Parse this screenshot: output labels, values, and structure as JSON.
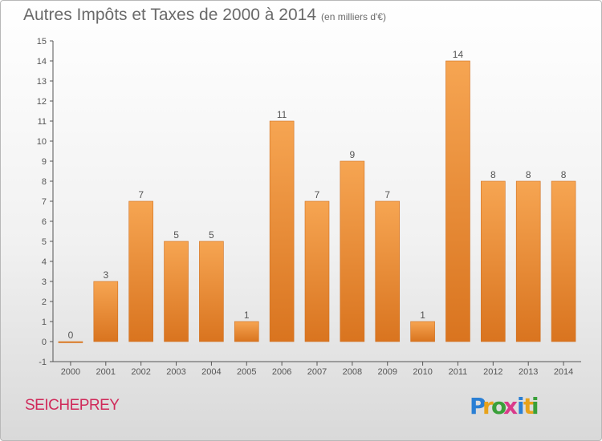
{
  "header": {
    "title": "Autres Impôts et Taxes de 2000 à 2014",
    "unit_note": "(en milliers d'€)"
  },
  "commune_name": "SEICHEPREY",
  "logo": {
    "text": "Proxiti",
    "colors": [
      "#2a7fd4",
      "#e8a21a",
      "#3aa03a",
      "#d93a8a"
    ]
  },
  "chart_data": {
    "type": "bar",
    "title": "Autres Impôts et Taxes de 2000 à 2014",
    "subtitle": "(en milliers d'€)",
    "xlabel": "",
    "ylabel": "",
    "categories": [
      "2000",
      "2001",
      "2002",
      "2003",
      "2004",
      "2005",
      "2006",
      "2007",
      "2008",
      "2009",
      "2010",
      "2011",
      "2012",
      "2013",
      "2014"
    ],
    "values": [
      0,
      3,
      7,
      5,
      5,
      1,
      11,
      7,
      9,
      7,
      1,
      14,
      8,
      8,
      8
    ],
    "ylim": [
      -1,
      15
    ],
    "yticks": [
      -1,
      0,
      1,
      2,
      3,
      4,
      5,
      6,
      7,
      8,
      9,
      10,
      11,
      12,
      13,
      14,
      15
    ],
    "grid": false,
    "legend": "none",
    "colors": {
      "bar_light": "#f6a552",
      "bar_dark": "#d9741f",
      "axis": "#555555",
      "text": "#555555"
    }
  }
}
